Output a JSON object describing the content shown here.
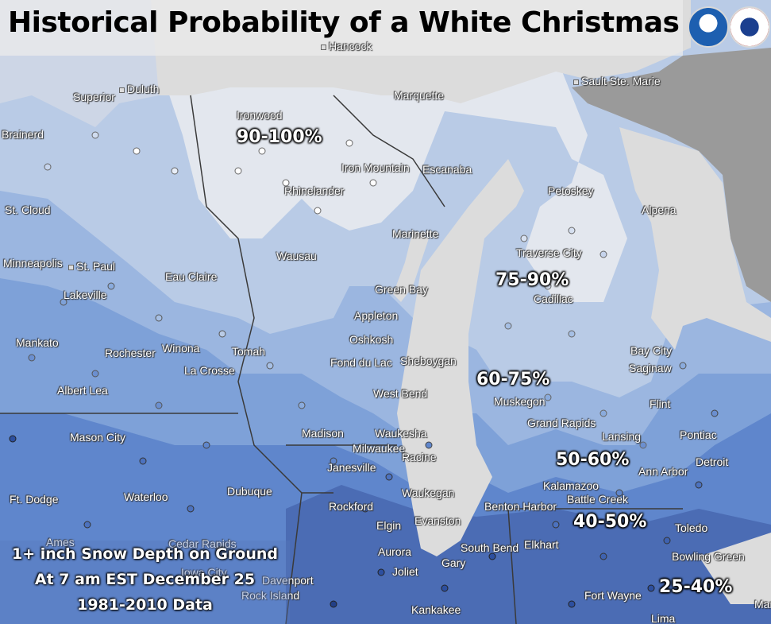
{
  "title": "Historical Probability of a White Christmas",
  "logos": {
    "noaa": "NOAA",
    "nws": "NATIONAL WEATHER SERVICE"
  },
  "colors": {
    "very_high": "#e3e7ee",
    "high": "#b9cbe6",
    "medium_high": "#9bb6e0",
    "medium": "#7ea1d8",
    "low": "#5f86cc",
    "very_low": "#4b6cb4",
    "lake": "#dcdcdc",
    "land_outside": "#9a9a9a"
  },
  "probability_labels": [
    {
      "text": "90-100%"
    },
    {
      "text": "75-90%"
    },
    {
      "text": "60-75%"
    },
    {
      "text": "50-60%"
    },
    {
      "text": "40-50%"
    },
    {
      "text": "25-40%"
    }
  ],
  "cities": [
    "Hancock",
    "Sault Ste. Marie",
    "Superior",
    "Duluth",
    "Marquette",
    "Ironwood",
    "Brainerd",
    "Iron Mountain",
    "Escanaba",
    "Petoskey",
    "Rhinelander",
    "St. Cloud",
    "Alpena",
    "Marinette",
    "Wausau",
    "Traverse City",
    "Minneapolis",
    "St. Paul",
    "Eau Claire",
    "Green Bay",
    "Cadillac",
    "Lakeville",
    "Appleton",
    "Oshkosh",
    "Mankato",
    "Rochester",
    "Winona",
    "Tomah",
    "Bay City",
    "Fond du Lac",
    "Sheboygan",
    "La Crosse",
    "Saginaw",
    "Albert Lea",
    "West Bend",
    "Muskegon",
    "Flint",
    "Grand Rapids",
    "Mason City",
    "Madison",
    "Waukesha",
    "Lansing",
    "Pontiac",
    "Milwaukee",
    "Racine",
    "Detroit",
    "Janesville",
    "Ann Arbor",
    "Kalamazoo",
    "Waterloo",
    "Dubuque",
    "Waukegan",
    "Ft. Dodge",
    "Battle Creek",
    "Rockford",
    "Benton Harbor",
    "Evanston",
    "Elgin",
    "Toledo",
    "Ames",
    "Cedar Rapids",
    "Elkhart",
    "South Bend",
    "Aurora",
    "Bowling Green",
    "Iowa City",
    "Davenport",
    "Gary",
    "Joliet",
    "Rock Island",
    "Fort Wayne",
    "Kankakee",
    "Lima",
    "Mar"
  ],
  "info": {
    "line1": "1+ inch Snow Depth on Ground",
    "line2": "At 7 am EST December 25",
    "line3": "1981-2010 Data"
  }
}
